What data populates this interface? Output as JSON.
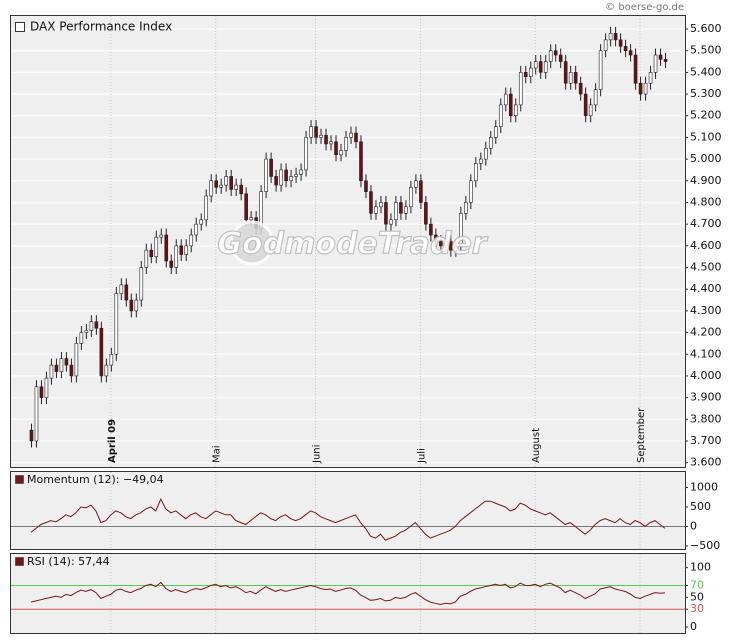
{
  "credit": "© boerse-go.de",
  "watermark": "GodmodeTrader",
  "chart_data": [
    {
      "type": "candlestick",
      "title": "DAX Performance Index",
      "up_color": "#ffffff",
      "down_color": "#6b1010",
      "xlim": [
        -4,
        131
      ],
      "xticks": [
        {
          "value": 16,
          "label": "April 09"
        },
        {
          "value": 37,
          "label": "Mai"
        },
        {
          "value": 57,
          "label": "Juni"
        },
        {
          "value": 78,
          "label": "Juli"
        },
        {
          "value": 101,
          "label": "August"
        },
        {
          "value": 122,
          "label": "September"
        }
      ],
      "ylim": [
        3580,
        5660
      ],
      "yticks": [
        {
          "value": 3600,
          "label": "3.600"
        },
        {
          "value": 3700,
          "label": "3.700"
        },
        {
          "value": 3800,
          "label": "3.800"
        },
        {
          "value": 3900,
          "label": "3.900"
        },
        {
          "value": 4000,
          "label": "4.000"
        },
        {
          "value": 4100,
          "label": "4.100"
        },
        {
          "value": 4200,
          "label": "4.200"
        },
        {
          "value": 4300,
          "label": "4.300"
        },
        {
          "value": 4400,
          "label": "4.400"
        },
        {
          "value": 4500,
          "label": "4.500"
        },
        {
          "value": 4600,
          "label": "4.600"
        },
        {
          "value": 4700,
          "label": "4.700"
        },
        {
          "value": 4800,
          "label": "4.800"
        },
        {
          "value": 4900,
          "label": "4.900"
        },
        {
          "value": 5000,
          "label": "5.000"
        },
        {
          "value": 5100,
          "label": "5.100"
        },
        {
          "value": 5200,
          "label": "5.200"
        },
        {
          "value": 5300,
          "label": "5.300"
        },
        {
          "value": 5400,
          "label": "5.400"
        },
        {
          "value": 5500,
          "label": "5.500"
        },
        {
          "value": 5600,
          "label": "5.600"
        }
      ],
      "grid": true,
      "candles": [
        [
          3750,
          3780,
          3670,
          3700
        ],
        [
          3700,
          3980,
          3670,
          3950
        ],
        [
          3950,
          3980,
          3870,
          3900
        ],
        [
          3900,
          4020,
          3870,
          3990
        ],
        [
          3990,
          4080,
          3960,
          4050
        ],
        [
          4050,
          4080,
          3990,
          4020
        ],
        [
          4020,
          4110,
          3990,
          4080
        ],
        [
          4080,
          4110,
          4020,
          4050
        ],
        [
          4050,
          4080,
          3970,
          4000
        ],
        [
          4000,
          4180,
          3970,
          4150
        ],
        [
          4150,
          4230,
          4120,
          4200
        ],
        [
          4200,
          4240,
          4170,
          4210
        ],
        [
          4210,
          4280,
          4180,
          4250
        ],
        [
          4250,
          4280,
          4190,
          4220
        ],
        [
          4220,
          4250,
          3970,
          4000
        ],
        [
          4000,
          4080,
          3970,
          4050
        ],
        [
          4050,
          4130,
          4020,
          4100
        ],
        [
          4100,
          4410,
          4070,
          4380
        ],
        [
          4380,
          4450,
          4350,
          4420
        ],
        [
          4420,
          4450,
          4320,
          4350
        ],
        [
          4350,
          4380,
          4270,
          4300
        ],
        [
          4300,
          4380,
          4270,
          4350
        ],
        [
          4350,
          4530,
          4320,
          4500
        ],
        [
          4500,
          4610,
          4470,
          4580
        ],
        [
          4580,
          4610,
          4520,
          4550
        ],
        [
          4550,
          4670,
          4520,
          4640
        ],
        [
          4640,
          4680,
          4610,
          4650
        ],
        [
          4650,
          4680,
          4500,
          4530
        ],
        [
          4530,
          4560,
          4470,
          4500
        ],
        [
          4500,
          4630,
          4470,
          4600
        ],
        [
          4600,
          4630,
          4530,
          4560
        ],
        [
          4560,
          4630,
          4530,
          4600
        ],
        [
          4600,
          4680,
          4570,
          4650
        ],
        [
          4650,
          4730,
          4620,
          4700
        ],
        [
          4700,
          4750,
          4670,
          4720
        ],
        [
          4720,
          4860,
          4690,
          4830
        ],
        [
          4830,
          4930,
          4800,
          4900
        ],
        [
          4900,
          4930,
          4840,
          4870
        ],
        [
          4870,
          4910,
          4840,
          4880
        ],
        [
          4880,
          4950,
          4850,
          4920
        ],
        [
          4920,
          4950,
          4830,
          4860
        ],
        [
          4860,
          4910,
          4830,
          4880
        ],
        [
          4880,
          4910,
          4810,
          4840
        ],
        [
          4840,
          4870,
          4690,
          4720
        ],
        [
          4720,
          4760,
          4690,
          4730
        ],
        [
          4730,
          4760,
          4650,
          4680
        ],
        [
          4680,
          4880,
          4650,
          4850
        ],
        [
          4850,
          5030,
          4820,
          5000
        ],
        [
          5000,
          5030,
          4890,
          4920
        ],
        [
          4920,
          4950,
          4850,
          4880
        ],
        [
          4880,
          4980,
          4850,
          4950
        ],
        [
          4950,
          4980,
          4870,
          4900
        ],
        [
          4900,
          4950,
          4870,
          4920
        ],
        [
          4920,
          4960,
          4890,
          4930
        ],
        [
          4930,
          4980,
          4900,
          4950
        ],
        [
          4950,
          5130,
          4920,
          5100
        ],
        [
          5100,
          5180,
          5070,
          5150
        ],
        [
          5150,
          5180,
          5070,
          5100
        ],
        [
          5100,
          5140,
          5070,
          5110
        ],
        [
          5110,
          5140,
          5040,
          5070
        ],
        [
          5070,
          5110,
          5040,
          5080
        ],
        [
          5080,
          5110,
          4990,
          5020
        ],
        [
          5020,
          5070,
          4990,
          5040
        ],
        [
          5040,
          5130,
          5010,
          5100
        ],
        [
          5100,
          5150,
          5070,
          5120
        ],
        [
          5120,
          5150,
          5050,
          5080
        ],
        [
          5080,
          5110,
          4870,
          4900
        ],
        [
          4900,
          4930,
          4820,
          4850
        ],
        [
          4850,
          4880,
          4720,
          4750
        ],
        [
          4750,
          4810,
          4720,
          4780
        ],
        [
          4780,
          4830,
          4750,
          4800
        ],
        [
          4800,
          4830,
          4670,
          4700
        ],
        [
          4700,
          4750,
          4670,
          4720
        ],
        [
          4720,
          4830,
          4690,
          4800
        ],
        [
          4800,
          4830,
          4720,
          4750
        ],
        [
          4750,
          4810,
          4720,
          4780
        ],
        [
          4780,
          4900,
          4750,
          4870
        ],
        [
          4870,
          4930,
          4840,
          4900
        ],
        [
          4900,
          4930,
          4770,
          4800
        ],
        [
          4800,
          4830,
          4670,
          4700
        ],
        [
          4700,
          4730,
          4620,
          4650
        ],
        [
          4650,
          4680,
          4590,
          4620
        ],
        [
          4620,
          4650,
          4570,
          4600
        ],
        [
          4600,
          4650,
          4570,
          4620
        ],
        [
          4620,
          4650,
          4550,
          4580
        ],
        [
          4580,
          4630,
          4550,
          4600
        ],
        [
          4600,
          4780,
          4570,
          4750
        ],
        [
          4750,
          4830,
          4720,
          4800
        ],
        [
          4800,
          4930,
          4770,
          4900
        ],
        [
          4900,
          5010,
          4870,
          4980
        ],
        [
          4980,
          5030,
          4950,
          5000
        ],
        [
          5000,
          5080,
          4970,
          5050
        ],
        [
          5050,
          5130,
          5020,
          5100
        ],
        [
          5100,
          5180,
          5070,
          5150
        ],
        [
          5150,
          5280,
          5120,
          5250
        ],
        [
          5250,
          5330,
          5220,
          5300
        ],
        [
          5300,
          5330,
          5170,
          5200
        ],
        [
          5200,
          5280,
          5170,
          5250
        ],
        [
          5250,
          5430,
          5220,
          5400
        ],
        [
          5400,
          5430,
          5350,
          5380
        ],
        [
          5380,
          5450,
          5350,
          5420
        ],
        [
          5420,
          5480,
          5390,
          5450
        ],
        [
          5450,
          5480,
          5370,
          5400
        ],
        [
          5400,
          5480,
          5370,
          5450
        ],
        [
          5450,
          5530,
          5420,
          5500
        ],
        [
          5500,
          5530,
          5450,
          5480
        ],
        [
          5480,
          5510,
          5420,
          5450
        ],
        [
          5450,
          5480,
          5320,
          5350
        ],
        [
          5350,
          5430,
          5320,
          5400
        ],
        [
          5400,
          5430,
          5320,
          5350
        ],
        [
          5350,
          5380,
          5270,
          5300
        ],
        [
          5300,
          5330,
          5170,
          5200
        ],
        [
          5200,
          5280,
          5170,
          5250
        ],
        [
          5250,
          5350,
          5220,
          5320
        ],
        [
          5320,
          5530,
          5290,
          5500
        ],
        [
          5500,
          5580,
          5470,
          5550
        ],
        [
          5550,
          5610,
          5520,
          5580
        ],
        [
          5580,
          5610,
          5520,
          5550
        ],
        [
          5550,
          5580,
          5490,
          5520
        ],
        [
          5520,
          5550,
          5470,
          5500
        ],
        [
          5500,
          5530,
          5450,
          5480
        ],
        [
          5480,
          5510,
          5320,
          5350
        ],
        [
          5350,
          5380,
          5270,
          5300
        ],
        [
          5300,
          5380,
          5270,
          5350
        ],
        [
          5350,
          5430,
          5320,
          5400
        ],
        [
          5400,
          5510,
          5370,
          5480
        ],
        [
          5480,
          5510,
          5430,
          5460
        ],
        [
          5460,
          5490,
          5420,
          5450
        ]
      ]
    },
    {
      "type": "line",
      "xlim": [
        -4,
        131
      ],
      "ylim": [
        -580,
        1400
      ],
      "yticks": [
        1000,
        500,
        0,
        {
          "value": -500,
          "label": "−500"
        }
      ],
      "reference_lines": [
        {
          "value": 0,
          "color": "#777777"
        }
      ],
      "series": [
        {
          "name": "Momentum (12): −49,04",
          "color": "#7a1515",
          "values": [
            -150,
            -50,
            50,
            100,
            150,
            120,
            200,
            300,
            250,
            350,
            500,
            480,
            550,
            400,
            100,
            150,
            300,
            400,
            350,
            250,
            200,
            300,
            350,
            450,
            500,
            400,
            700,
            450,
            350,
            400,
            300,
            200,
            300,
            350,
            250,
            200,
            300,
            400,
            350,
            300,
            300,
            150,
            100,
            50,
            150,
            250,
            350,
            300,
            200,
            150,
            250,
            300,
            200,
            150,
            200,
            300,
            400,
            350,
            250,
            200,
            150,
            100,
            150,
            200,
            250,
            300,
            100,
            -50,
            -250,
            -300,
            -200,
            -350,
            -300,
            -250,
            -150,
            -100,
            0,
            100,
            -50,
            -200,
            -300,
            -250,
            -200,
            -150,
            -100,
            0,
            150,
            250,
            350,
            450,
            550,
            650,
            650,
            600,
            550,
            500,
            400,
            450,
            600,
            550,
            450,
            400,
            350,
            300,
            350,
            250,
            150,
            50,
            100,
            0,
            -100,
            -200,
            -100,
            50,
            150,
            200,
            150,
            100,
            200,
            100,
            50,
            150,
            100,
            0,
            100,
            150,
            50,
            -49.04
          ]
        }
      ]
    },
    {
      "type": "line",
      "xlim": [
        -4,
        131
      ],
      "ylim": [
        -10,
        123
      ],
      "yticks": [
        100,
        70,
        50,
        30,
        0
      ],
      "reference_lines": [
        {
          "value": 70,
          "color": "#55cc55"
        },
        {
          "value": 30,
          "color": "#e05555"
        }
      ],
      "series": [
        {
          "name": "RSI (14): 57,44",
          "color": "#7a1515",
          "values": [
            42,
            44,
            46,
            48,
            50,
            52,
            50,
            55,
            53,
            58,
            62,
            60,
            63,
            58,
            48,
            52,
            55,
            62,
            64,
            60,
            58,
            62,
            65,
            70,
            72,
            68,
            75,
            65,
            60,
            63,
            60,
            58,
            62,
            65,
            63,
            66,
            70,
            72,
            68,
            70,
            66,
            68,
            64,
            58,
            60,
            56,
            62,
            68,
            64,
            60,
            63,
            60,
            62,
            64,
            66,
            68,
            70,
            68,
            65,
            63,
            64,
            60,
            62,
            65,
            66,
            62,
            54,
            50,
            45,
            46,
            48,
            44,
            45,
            50,
            48,
            50,
            55,
            58,
            52,
            46,
            42,
            40,
            38,
            40,
            39,
            42,
            52,
            55,
            60,
            64,
            66,
            68,
            70,
            72,
            70,
            72,
            66,
            68,
            74,
            70,
            70,
            72,
            68,
            72,
            74,
            70,
            66,
            58,
            62,
            58,
            54,
            48,
            52,
            56,
            64,
            66,
            68,
            64,
            62,
            60,
            56,
            50,
            48,
            52,
            55,
            58,
            57,
            57.44
          ]
        }
      ]
    }
  ]
}
